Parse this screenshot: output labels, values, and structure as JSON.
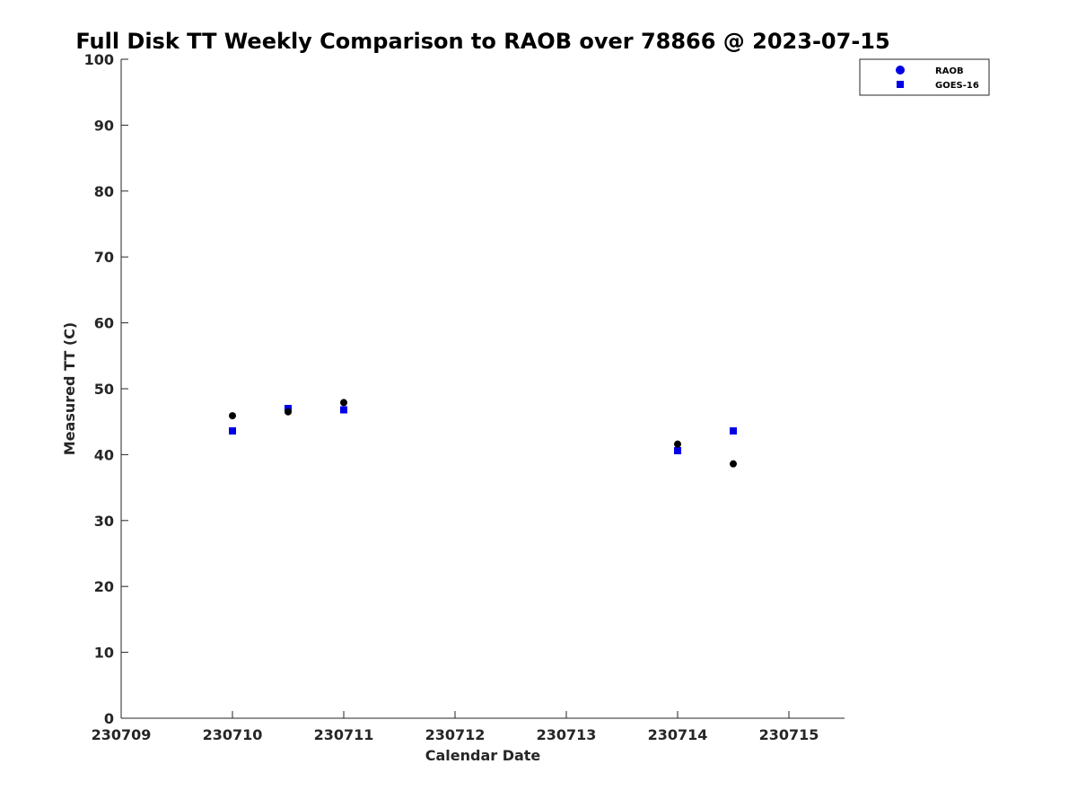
{
  "chart_data": {
    "type": "scatter",
    "title": "Full Disk TT Weekly Comparison to RAOB over 78866 @ 2023-07-15",
    "xlabel": "Calendar Date",
    "ylabel": "Measured TT (C)",
    "xlim": [
      230709,
      230715.5
    ],
    "ylim": [
      0,
      100
    ],
    "x_ticks": [
      "230709",
      "230710",
      "230711",
      "230712",
      "230713",
      "230714",
      "230715"
    ],
    "y_ticks": [
      "0",
      "10",
      "20",
      "30",
      "40",
      "50",
      "60",
      "70",
      "80",
      "90",
      "100"
    ],
    "grid": false,
    "legend_position": "top-right",
    "series": [
      {
        "name": "RAOB",
        "marker": "circle",
        "color": "#000000",
        "legend_color": "#0000e6",
        "x": [
          230710,
          230710.5,
          230711,
          230714,
          230714.5
        ],
        "y": [
          45.9,
          46.5,
          47.9,
          41.6,
          38.6
        ]
      },
      {
        "name": "GOES-16",
        "marker": "square",
        "color": "#0000e6",
        "x": [
          230710,
          230710.5,
          230711,
          230714,
          230714.5
        ],
        "y": [
          43.6,
          47.0,
          46.8,
          40.6,
          43.6
        ]
      }
    ]
  }
}
